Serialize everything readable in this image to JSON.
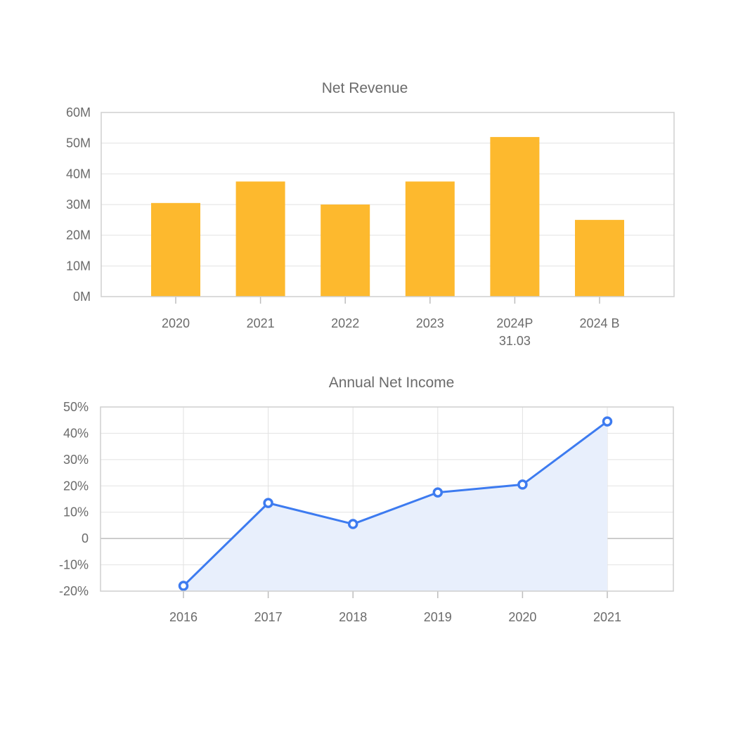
{
  "chart_data": [
    {
      "type": "bar",
      "title": "Net Revenue",
      "categories": [
        [
          "2020"
        ],
        [
          "2021"
        ],
        [
          "2022"
        ],
        [
          "2023"
        ],
        [
          "2024P",
          "31.03"
        ],
        [
          "2024 B"
        ]
      ],
      "values": [
        30.5,
        37.5,
        30.0,
        37.5,
        52.0,
        25.0
      ],
      "y_ticks": [
        "0M",
        "10M",
        "20M",
        "30M",
        "40M",
        "50M",
        "60M"
      ],
      "ylim": [
        0,
        60
      ],
      "unit": "M",
      "grid": true,
      "color": "#fdb92e"
    },
    {
      "type": "area",
      "title": "Annual Net Income",
      "categories": [
        "2016",
        "2017",
        "2018",
        "2019",
        "2020",
        "2021"
      ],
      "values": [
        -18,
        13.5,
        5.5,
        17.5,
        20.5,
        44.5
      ],
      "y_ticks": [
        "-20%",
        "-10%",
        "0",
        "10%",
        "20%",
        "30%",
        "40%",
        "50%"
      ],
      "ylim": [
        -20,
        50
      ],
      "grid": true,
      "line_color": "#3d7bf0",
      "fill_color": "#e8effc"
    }
  ]
}
